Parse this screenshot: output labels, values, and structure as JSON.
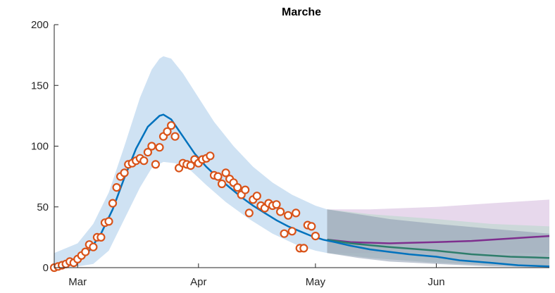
{
  "chart_data": {
    "type": "line",
    "title": "Marche",
    "xlabel": "",
    "ylabel": "",
    "x_axis": {
      "type": "date",
      "range": [
        "2020-02-24",
        "2020-06-30"
      ],
      "ticks": [
        {
          "date": "2020-03-01",
          "label": "Mar"
        },
        {
          "date": "2020-04-01",
          "label": "Apr"
        },
        {
          "date": "2020-05-01",
          "label": "May"
        },
        {
          "date": "2020-06-01",
          "label": "Jun"
        }
      ]
    },
    "y_axis": {
      "range": [
        0,
        200
      ],
      "ticks": [
        0,
        50,
        100,
        150,
        200
      ]
    },
    "grid": false,
    "colors": {
      "fit_line": "#0072bd",
      "observed_marker": "#d95319",
      "confidence_band": "#cfe2f3",
      "projection_band": "#8c9bb0",
      "scenario_1": "#7e2f8e",
      "scenario_1_band": "#e4d4ea",
      "scenario_2": "#2e7d6b",
      "scenario_2_band": "#c6d8d4",
      "axis": "#262626"
    },
    "projection_start": "2020-05-04",
    "series": [
      {
        "kind": "observed",
        "marker": "circle",
        "points": [
          [
            "2020-02-24",
            0
          ],
          [
            "2020-02-25",
            1
          ],
          [
            "2020-02-26",
            2
          ],
          [
            "2020-02-27",
            3
          ],
          [
            "2020-02-28",
            5
          ],
          [
            "2020-02-29",
            4
          ],
          [
            "2020-03-01",
            7
          ],
          [
            "2020-03-02",
            10
          ],
          [
            "2020-03-03",
            13
          ],
          [
            "2020-03-04",
            19
          ],
          [
            "2020-03-05",
            17
          ],
          [
            "2020-03-06",
            25
          ],
          [
            "2020-03-07",
            25
          ],
          [
            "2020-03-08",
            37
          ],
          [
            "2020-03-09",
            38
          ],
          [
            "2020-03-10",
            53
          ],
          [
            "2020-03-11",
            66
          ],
          [
            "2020-03-12",
            75
          ],
          [
            "2020-03-13",
            78
          ],
          [
            "2020-03-14",
            85
          ],
          [
            "2020-03-15",
            86
          ],
          [
            "2020-03-16",
            88
          ],
          [
            "2020-03-17",
            90
          ],
          [
            "2020-03-18",
            88
          ],
          [
            "2020-03-19",
            95
          ],
          [
            "2020-03-20",
            100
          ],
          [
            "2020-03-21",
            85
          ],
          [
            "2020-03-22",
            99
          ],
          [
            "2020-03-23",
            108
          ],
          [
            "2020-03-24",
            112
          ],
          [
            "2020-03-25",
            117
          ],
          [
            "2020-03-26",
            108
          ],
          [
            "2020-03-27",
            82
          ],
          [
            "2020-03-28",
            86
          ],
          [
            "2020-03-29",
            85
          ],
          [
            "2020-03-30",
            84
          ],
          [
            "2020-03-31",
            89
          ],
          [
            "2020-04-01",
            86
          ],
          [
            "2020-04-02",
            89
          ],
          [
            "2020-04-03",
            90
          ],
          [
            "2020-04-04",
            92
          ],
          [
            "2020-04-05",
            76
          ],
          [
            "2020-04-06",
            75
          ],
          [
            "2020-04-07",
            69
          ],
          [
            "2020-04-08",
            78
          ],
          [
            "2020-04-09",
            73
          ],
          [
            "2020-04-10",
            70
          ],
          [
            "2020-04-11",
            66
          ],
          [
            "2020-04-12",
            60
          ],
          [
            "2020-04-13",
            64
          ],
          [
            "2020-04-14",
            45
          ],
          [
            "2020-04-15",
            56
          ],
          [
            "2020-04-16",
            59
          ],
          [
            "2020-04-17",
            51
          ],
          [
            "2020-04-18",
            49
          ],
          [
            "2020-04-19",
            53
          ],
          [
            "2020-04-20",
            51
          ],
          [
            "2020-04-21",
            52
          ],
          [
            "2020-04-22",
            46
          ],
          [
            "2020-04-23",
            28
          ],
          [
            "2020-04-24",
            43
          ],
          [
            "2020-04-25",
            30
          ],
          [
            "2020-04-26",
            45
          ],
          [
            "2020-04-27",
            16
          ],
          [
            "2020-04-28",
            16
          ],
          [
            "2020-04-29",
            35
          ],
          [
            "2020-04-30",
            34
          ],
          [
            "2020-05-01",
            26
          ]
        ]
      },
      {
        "kind": "fit",
        "points": [
          [
            "2020-02-24",
            0
          ],
          [
            "2020-02-27",
            2
          ],
          [
            "2020-03-01",
            6
          ],
          [
            "2020-03-04",
            14
          ],
          [
            "2020-03-07",
            28
          ],
          [
            "2020-03-10",
            48
          ],
          [
            "2020-03-13",
            74
          ],
          [
            "2020-03-16",
            98
          ],
          [
            "2020-03-19",
            116
          ],
          [
            "2020-03-22",
            125
          ],
          [
            "2020-03-23",
            126
          ],
          [
            "2020-03-25",
            122
          ],
          [
            "2020-03-28",
            108
          ],
          [
            "2020-03-31",
            94
          ],
          [
            "2020-04-03",
            83
          ],
          [
            "2020-04-06",
            74
          ],
          [
            "2020-04-09",
            66
          ],
          [
            "2020-04-12",
            58
          ],
          [
            "2020-04-15",
            51
          ],
          [
            "2020-04-18",
            45
          ],
          [
            "2020-04-21",
            39
          ],
          [
            "2020-04-24",
            34
          ],
          [
            "2020-04-27",
            30
          ],
          [
            "2020-04-30",
            26
          ],
          [
            "2020-05-03",
            23
          ],
          [
            "2020-05-06",
            21
          ],
          [
            "2020-05-10",
            18
          ],
          [
            "2020-05-15",
            15
          ],
          [
            "2020-05-20",
            13
          ],
          [
            "2020-05-25",
            11
          ],
          [
            "2020-06-01",
            9
          ],
          [
            "2020-06-07",
            6
          ],
          [
            "2020-06-15",
            4
          ],
          [
            "2020-06-22",
            2
          ],
          [
            "2020-06-30",
            1
          ]
        ]
      },
      {
        "kind": "band",
        "upper": [
          [
            "2020-02-24",
            12
          ],
          [
            "2020-03-01",
            20
          ],
          [
            "2020-03-05",
            36
          ],
          [
            "2020-03-09",
            62
          ],
          [
            "2020-03-13",
            100
          ],
          [
            "2020-03-17",
            140
          ],
          [
            "2020-03-20",
            163
          ],
          [
            "2020-03-22",
            172
          ],
          [
            "2020-03-23",
            174
          ],
          [
            "2020-03-25",
            172
          ],
          [
            "2020-03-28",
            160
          ],
          [
            "2020-04-01",
            140
          ],
          [
            "2020-04-05",
            120
          ],
          [
            "2020-04-10",
            100
          ],
          [
            "2020-04-15",
            83
          ],
          [
            "2020-04-20",
            70
          ],
          [
            "2020-04-25",
            60
          ],
          [
            "2020-05-01",
            51
          ],
          [
            "2020-05-04",
            48
          ]
        ],
        "lower": [
          [
            "2020-02-24",
            0
          ],
          [
            "2020-03-01",
            1
          ],
          [
            "2020-03-05",
            3
          ],
          [
            "2020-03-09",
            14
          ],
          [
            "2020-03-13",
            40
          ],
          [
            "2020-03-17",
            66
          ],
          [
            "2020-03-20",
            82
          ],
          [
            "2020-03-23",
            87
          ],
          [
            "2020-03-26",
            86
          ],
          [
            "2020-03-30",
            80
          ],
          [
            "2020-04-03",
            68
          ],
          [
            "2020-04-08",
            54
          ],
          [
            "2020-04-14",
            40
          ],
          [
            "2020-04-20",
            28
          ],
          [
            "2020-04-26",
            19
          ],
          [
            "2020-05-01",
            14
          ],
          [
            "2020-05-04",
            12
          ]
        ]
      },
      {
        "kind": "projection_band",
        "upper": [
          [
            "2020-05-04",
            48
          ],
          [
            "2020-05-12",
            44
          ],
          [
            "2020-05-20",
            40
          ],
          [
            "2020-06-01",
            36
          ],
          [
            "2020-06-15",
            32
          ],
          [
            "2020-06-30",
            28
          ]
        ],
        "lower": [
          [
            "2020-05-04",
            12
          ],
          [
            "2020-05-12",
            8
          ],
          [
            "2020-05-20",
            5
          ],
          [
            "2020-06-01",
            3
          ],
          [
            "2020-06-15",
            1
          ],
          [
            "2020-06-30",
            0
          ]
        ]
      },
      {
        "kind": "scenario_1_band",
        "upper": [
          [
            "2020-05-04",
            48
          ],
          [
            "2020-05-15",
            48
          ],
          [
            "2020-06-01",
            50
          ],
          [
            "2020-06-15",
            53
          ],
          [
            "2020-06-30",
            56
          ]
        ],
        "lower": [
          [
            "2020-05-04",
            12
          ],
          [
            "2020-05-15",
            12
          ],
          [
            "2020-06-01",
            12
          ],
          [
            "2020-06-15",
            12
          ],
          [
            "2020-06-30",
            12
          ]
        ]
      },
      {
        "kind": "scenario_2_band",
        "upper": [
          [
            "2020-05-04",
            48
          ],
          [
            "2020-05-15",
            44
          ],
          [
            "2020-06-01",
            40
          ],
          [
            "2020-06-15",
            36
          ],
          [
            "2020-06-30",
            34
          ]
        ],
        "lower": [
          [
            "2020-05-04",
            12
          ],
          [
            "2020-05-15",
            8
          ],
          [
            "2020-06-01",
            4
          ],
          [
            "2020-06-15",
            2
          ],
          [
            "2020-06-30",
            1
          ]
        ]
      },
      {
        "kind": "scenario_1",
        "points": [
          [
            "2020-05-04",
            23
          ],
          [
            "2020-05-10",
            21
          ],
          [
            "2020-05-20",
            20
          ],
          [
            "2020-06-01",
            21
          ],
          [
            "2020-06-10",
            22
          ],
          [
            "2020-06-20",
            24
          ],
          [
            "2020-06-30",
            26
          ]
        ]
      },
      {
        "kind": "scenario_2",
        "points": [
          [
            "2020-05-04",
            23
          ],
          [
            "2020-05-10",
            20
          ],
          [
            "2020-05-20",
            17
          ],
          [
            "2020-06-01",
            14
          ],
          [
            "2020-06-10",
            11
          ],
          [
            "2020-06-20",
            9
          ],
          [
            "2020-06-30",
            8
          ]
        ]
      }
    ]
  }
}
